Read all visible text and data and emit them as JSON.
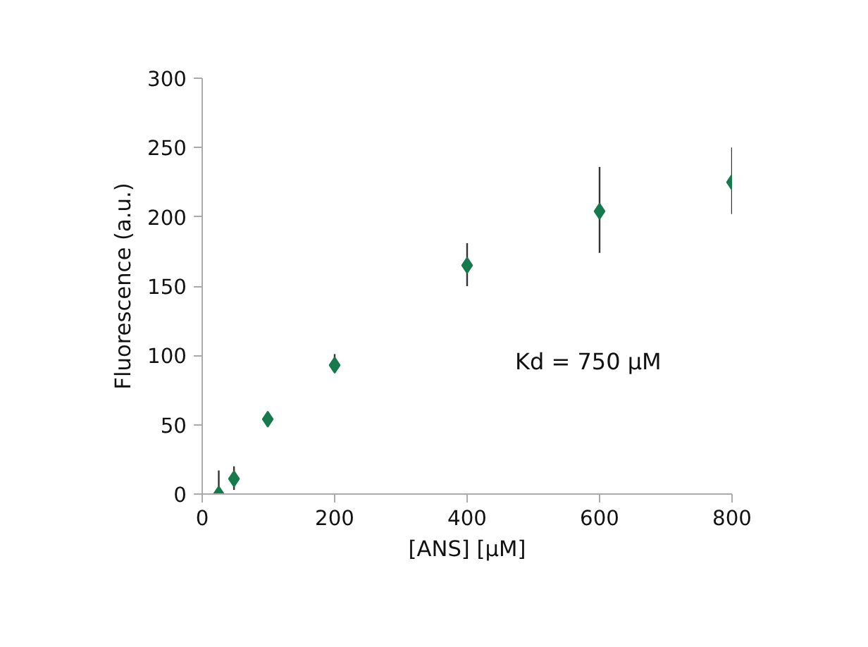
{
  "chart_data": {
    "type": "scatter",
    "xlabel": "[ANS] [µM]",
    "ylabel": "Fluorescence (a.u.)",
    "annotations": [
      "Kd = 750 µM"
    ],
    "x": [
      25,
      48,
      99,
      200,
      400,
      600,
      800
    ],
    "series": [
      {
        "color": "#167a4c",
        "values": [
          0,
          11,
          54,
          93,
          165,
          204,
          225
        ],
        "errors": [
          [
            0,
            17
          ],
          [
            3,
            20
          ],
          null,
          [
            88,
            101
          ],
          [
            150,
            181
          ],
          [
            174,
            236
          ],
          [
            202,
            250
          ]
        ]
      }
    ],
    "xlim": [
      0,
      800
    ],
    "ylim": [
      0,
      300
    ],
    "xticks": [
      0,
      200,
      400,
      600,
      800
    ],
    "yticks": [
      0,
      50,
      100,
      150,
      200,
      250,
      300
    ],
    "marker": "diamond",
    "grid": false
  }
}
